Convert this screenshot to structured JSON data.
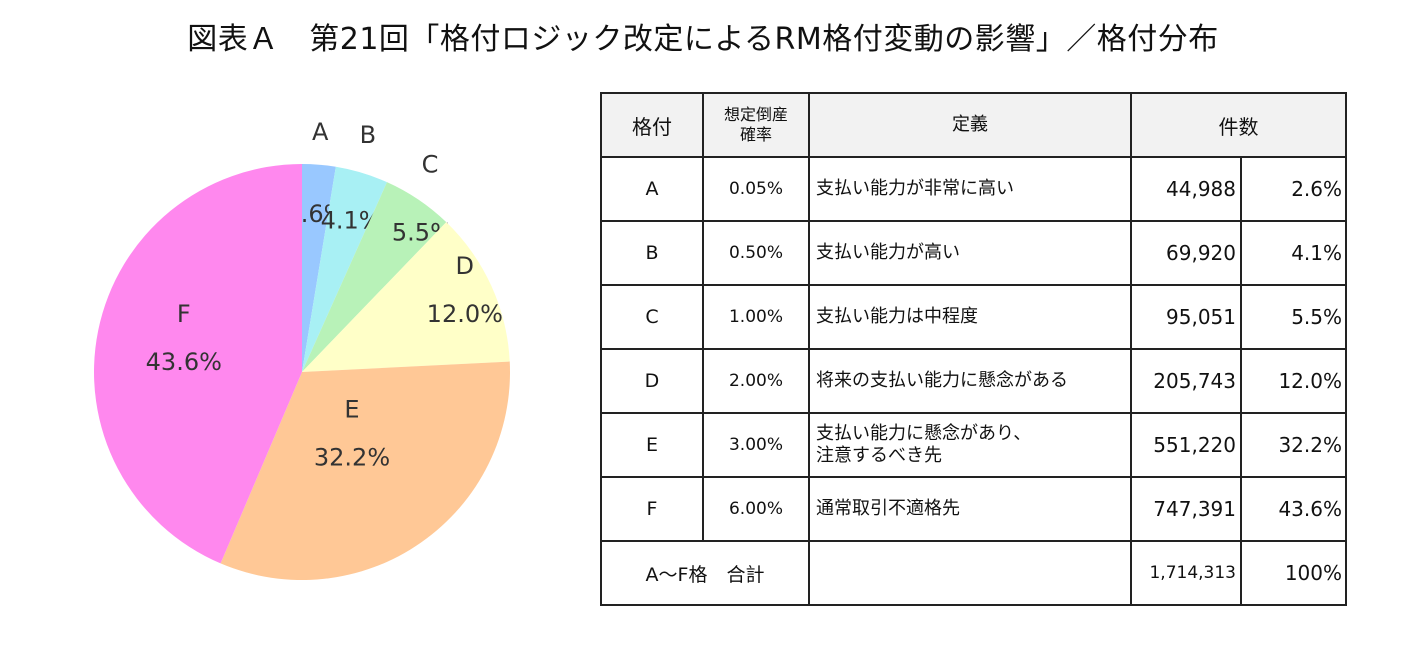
{
  "title": "図表Ａ　第21回「格付ロジック改定によるRM格付変動の影響」／格付分布",
  "chart_data": [
    {
      "type": "pie",
      "categories": [
        "A",
        "B",
        "C",
        "D",
        "E",
        "F"
      ],
      "values": [
        2.6,
        4.1,
        5.5,
        12.0,
        32.2,
        43.6
      ],
      "value_labels": [
        "2.6%",
        "4.1%",
        "5.5%",
        "12.0%",
        "32.2%",
        "43.6%"
      ],
      "colors": [
        "#99c8ff",
        "#a8f0f4",
        "#b8f2b8",
        "#ffffc8",
        "#ffc896",
        "#ff88ee"
      ],
      "start_angle_deg": 0,
      "direction": "clockwise"
    },
    {
      "type": "table",
      "headers": {
        "grade": "格付",
        "prob_line1": "想定倒産",
        "prob_line2": "確率",
        "definition": "定義",
        "count": "件数"
      },
      "rows": [
        {
          "grade": "A",
          "prob": "0.05%",
          "def1": "支払い能力が非常に高い",
          "def2": "",
          "count": "44,988",
          "pct": "2.6%"
        },
        {
          "grade": "B",
          "prob": "0.50%",
          "def1": "支払い能力が高い",
          "def2": "",
          "count": "69,920",
          "pct": "4.1%"
        },
        {
          "grade": "C",
          "prob": "1.00%",
          "def1": "支払い能力は中程度",
          "def2": "",
          "count": "95,051",
          "pct": "5.5%"
        },
        {
          "grade": "D",
          "prob": "2.00%",
          "def1": "将来の支払い能力に懸念がある",
          "def2": "",
          "count": "205,743",
          "pct": "12.0%"
        },
        {
          "grade": "E",
          "prob": "3.00%",
          "def1": "支払い能力に懸念があり、",
          "def2": "注意するべき先",
          "count": "551,220",
          "pct": "32.2%"
        },
        {
          "grade": "F",
          "prob": "6.00%",
          "def1": "通常取引不適格先",
          "def2": "",
          "count": "747,391",
          "pct": "43.6%"
        }
      ],
      "total": {
        "label": "A～F格　合計",
        "count": "1,714,313",
        "pct": "100%"
      }
    }
  ]
}
